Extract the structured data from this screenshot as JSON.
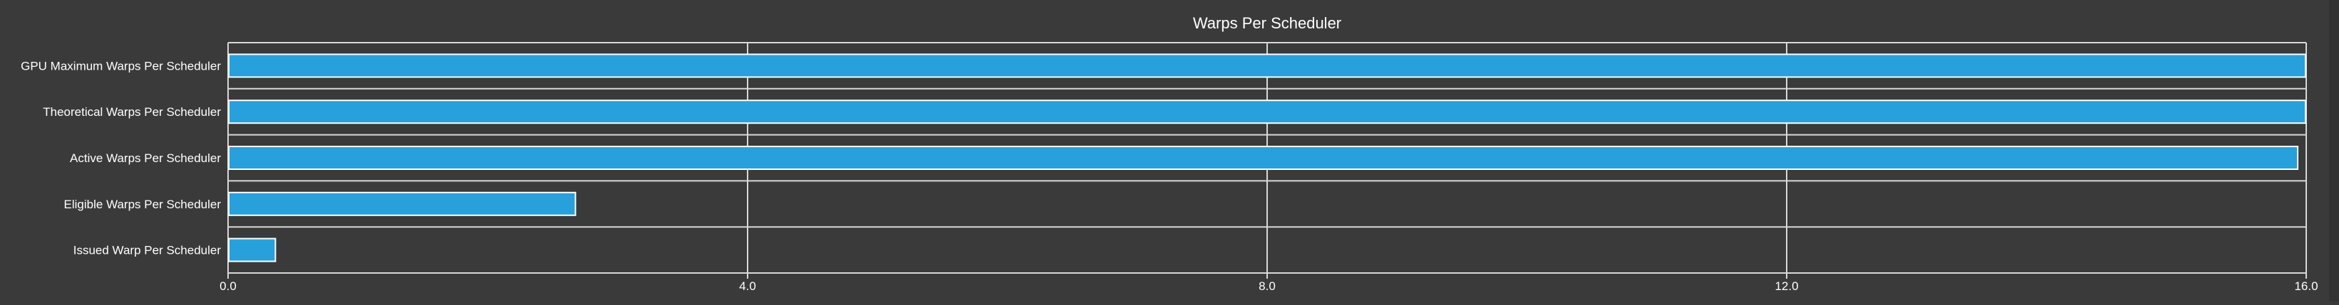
{
  "chart_data": {
    "type": "bar",
    "orientation": "horizontal",
    "title": "Warps Per Scheduler",
    "xlabel": "",
    "ylabel": "",
    "categories": [
      "GPU Maximum Warps Per Scheduler",
      "Theoretical Warps Per Scheduler",
      "Active Warps Per Scheduler",
      "Eligible Warps Per Scheduler",
      "Issued Warp Per Scheduler"
    ],
    "values": [
      16.0,
      16.0,
      15.94,
      2.68,
      0.37
    ],
    "xlim": [
      0,
      16.0
    ],
    "xticks": [
      0,
      4,
      8,
      12,
      16
    ],
    "xtick_labels": [
      "0.0",
      "4.0",
      "8.0",
      "12.0",
      "16.0"
    ],
    "grid": true,
    "legend": "none",
    "colors": {
      "background": "#3a3a3a",
      "bar_fill": "#27a0dc",
      "bar_stroke": "#ffffff",
      "grid": "#d8d8d8",
      "text": "#ffffff"
    }
  }
}
